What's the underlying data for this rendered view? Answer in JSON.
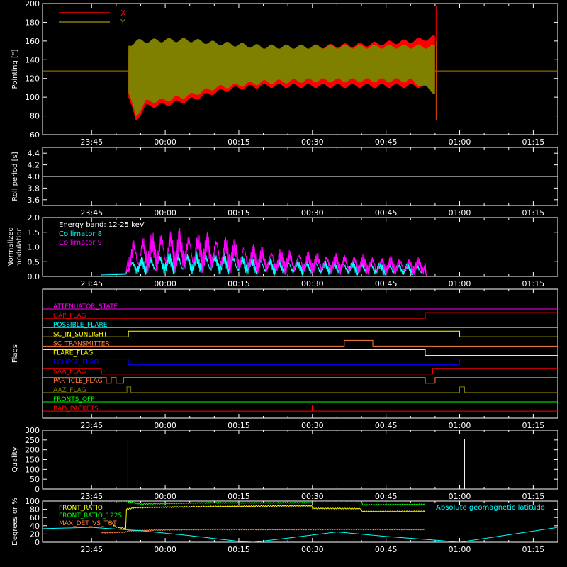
{
  "chart_data": [
    {
      "type": "line",
      "ylabel": "Pointing [\"]",
      "ylim": [
        60,
        200
      ],
      "yticks": [
        60,
        80,
        100,
        120,
        140,
        160,
        180,
        200
      ],
      "xtick_labels": [
        "23:45",
        "00:00",
        "00:15",
        "00:30",
        "00:45",
        "01:00",
        "01:15"
      ],
      "legend": [
        {
          "name": "X",
          "color": "#ff0000"
        },
        {
          "name": "Y",
          "color": "#808000"
        }
      ],
      "series": [
        {
          "name": "X",
          "color": "#ff0000",
          "baseline": 128,
          "envelope": {
            "t": [
              -7.5,
              -6,
              -4,
              0,
              5,
              10,
              15,
              20,
              30,
              40,
              50,
              55
            ],
            "upper": [
              150,
              138,
              140,
              143,
              145,
              149,
              152,
              153,
              154,
              156,
              160,
              164
            ],
            "lower": [
              100,
              75,
              90,
              92,
              97,
              105,
              110,
              112,
              112,
              112,
              112,
              112
            ]
          }
        },
        {
          "name": "Y",
          "color": "#808000",
          "baseline": 128,
          "envelope": {
            "t": [
              -7.5,
              -6,
              -4,
              0,
              5,
              10,
              15,
              20,
              30,
              40,
              50,
              55
            ],
            "upper": [
              155,
              160,
              160,
              161,
              161,
              158,
              156,
              154,
              154,
              154,
              154,
              154
            ],
            "lower": [
              105,
              80,
              95,
              97,
              102,
              110,
              113,
              116,
              118,
              118,
              118,
              105
            ]
          }
        }
      ]
    },
    {
      "type": "line",
      "ylabel": "Roll period [s]",
      "ylim": [
        3.5,
        4.5
      ],
      "yticks": [
        3.6,
        3.8,
        4.0,
        4.2,
        4.4
      ],
      "xtick_labels": [
        "23:45",
        "00:00",
        "00:15",
        "00:30",
        "00:45",
        "01:00",
        "01:15"
      ],
      "series": [
        {
          "name": "",
          "color": "#ffffff",
          "t": [
            -25,
            80
          ],
          "values": [
            4.0,
            4.0
          ]
        }
      ]
    },
    {
      "type": "line",
      "ylabel": [
        "Normalized",
        "modulation"
      ],
      "ylim": [
        0,
        2
      ],
      "yticks": [
        0.0,
        0.5,
        1.0,
        1.5,
        2.0
      ],
      "xtick_labels": [
        "23:45",
        "00:00",
        "00:15",
        "00:30",
        "00:45",
        "01:00",
        "01:15"
      ],
      "annotation": "Energy band: 12-25 keV",
      "legend": [
        {
          "name": "Collimator 8",
          "color": "#00ffff"
        },
        {
          "name": "Collimator 9",
          "color": "#ff00ff"
        }
      ],
      "series": [
        {
          "name": "Collimator 8",
          "color": "#00ffff",
          "t": [
            -13,
            -8,
            -7.5,
            0,
            10,
            20,
            30,
            40,
            50,
            53,
            53.2,
            80
          ],
          "values": [
            0.05,
            0.07,
            0.3,
            0.45,
            0.45,
            0.35,
            0.3,
            0.28,
            0.25,
            0.25,
            0,
            0
          ]
        },
        {
          "name": "Collimator 9",
          "color": "#ff00ff",
          "t": [
            -13,
            -8,
            -7.5,
            0,
            10,
            20,
            30,
            40,
            50,
            53,
            53.2,
            80
          ],
          "values": [
            0.08,
            0.1,
            0.7,
            0.9,
            0.8,
            0.55,
            0.45,
            0.4,
            0.35,
            0.35,
            0,
            0
          ]
        }
      ]
    },
    {
      "type": "line",
      "ylabel": "Flags",
      "xtick_labels": [
        "23:45",
        "00:00",
        "00:15",
        "00:30",
        "00:45",
        "01:00",
        "01:15"
      ],
      "flags": [
        {
          "name": "ATTENUATOR_STATE",
          "color": "#ff00ff",
          "segments": [
            [
              -25,
              80,
              0
            ]
          ]
        },
        {
          "name": "GAP_FLAG",
          "color": "#ff0000",
          "segments": [
            [
              -25,
              53,
              0
            ],
            [
              53,
              80,
              1
            ]
          ]
        },
        {
          "name": "POSSIBLE_FLARE",
          "color": "#00ffff",
          "segments": [
            [
              -25,
              80,
              0
            ]
          ]
        },
        {
          "name": "SC_IN_SUNLIGHT",
          "color": "#ffff00",
          "segments": [
            [
              -25,
              -7.5,
              0
            ],
            [
              -7.5,
              60,
              1
            ],
            [
              60,
              80,
              0
            ]
          ]
        },
        {
          "name": "SC_TRANSMITTER",
          "color": "#ff8040",
          "segments": [
            [
              -25,
              36.5,
              0
            ],
            [
              36.5,
              42.3,
              1
            ],
            [
              42.3,
              80,
              0
            ]
          ]
        },
        {
          "name": "FLARE_FLAG",
          "color": "#ffff00",
          "segments": [
            [
              -25,
              53,
              1
            ],
            [
              53,
              80,
              0
            ]
          ]
        },
        {
          "name": "ECLIPSE_FLAG",
          "color": "#0000ff",
          "segments": [
            [
              -25,
              -7.5,
              1
            ],
            [
              -7.5,
              60,
              0
            ],
            [
              60,
              80,
              1
            ]
          ]
        },
        {
          "name": "SAA_FLAG",
          "color": "#ff0000",
          "segments": [
            [
              -25,
              -13,
              1
            ],
            [
              -13,
              54.5,
              0
            ],
            [
              54.5,
              80,
              1
            ]
          ]
        },
        {
          "name": "PARTICLE_FLAG",
          "color": "#ff8040",
          "segments": [
            [
              -25,
              -12,
              1
            ],
            [
              -12,
              -11,
              0
            ],
            [
              -11,
              -10,
              1
            ],
            [
              -10,
              -8.5,
              0
            ],
            [
              -8.5,
              53,
              1
            ],
            [
              53,
              55,
              0
            ],
            [
              55,
              80,
              1
            ]
          ]
        },
        {
          "name": "AAZ_FLAG",
          "color": "#808000",
          "segments": [
            [
              -25,
              -7.8,
              0
            ],
            [
              -7.8,
              -7,
              1
            ],
            [
              -7,
              60,
              0
            ],
            [
              60,
              61,
              1
            ],
            [
              61,
              80,
              0
            ]
          ]
        },
        {
          "name": "FRONTS_OFF",
          "color": "#00ff00",
          "segments": [
            [
              -25,
              80,
              0
            ]
          ]
        },
        {
          "name": "BAD_PACKETS",
          "color": "#ff0000",
          "segments": [
            [
              -25,
              80,
              0
            ]
          ],
          "spikes": [
            30
          ]
        }
      ]
    },
    {
      "type": "line",
      "ylabel": "Quality",
      "ylim": [
        0,
        300
      ],
      "yticks": [
        0,
        50,
        100,
        150,
        200,
        250,
        300
      ],
      "xtick_labels": [
        "23:45",
        "00:00",
        "00:15",
        "00:30",
        "00:45",
        "01:00",
        "01:15"
      ],
      "series": [
        {
          "name": "",
          "color": "#ffffff",
          "t": [
            -25,
            -7.6,
            -7.6,
            61,
            61,
            80
          ],
          "values": [
            255,
            255,
            0,
            0,
            255,
            255
          ]
        }
      ]
    },
    {
      "type": "line",
      "ylabel": "Degrees or %",
      "ylim": [
        0,
        100
      ],
      "yticks": [
        0,
        20,
        40,
        60,
        80,
        100
      ],
      "xtick_labels": [
        "23:45",
        "00:00",
        "00:15",
        "00:30",
        "00:45",
        "01:00",
        "01:15"
      ],
      "legend": [
        {
          "name": "FRONT_RATIO",
          "color": "#ffff00"
        },
        {
          "name": "FRONT_RATIO_1225",
          "color": "#00ff00"
        },
        {
          "name": "MAX_DET_VS_TOT",
          "color": "#ff8040"
        }
      ],
      "annotation": "Absolute geomagnetic latitude",
      "annotation_color": "#00ffff",
      "series": [
        {
          "name": "FRONT_RATIO",
          "color": "#ffff00",
          "t": [
            -11.5,
            -11.5,
            -10,
            -8,
            -8,
            -6,
            0,
            10,
            20,
            29.9,
            30,
            39.9,
            40,
            50,
            53
          ],
          "values": [
            0,
            50,
            37,
            33,
            80,
            84,
            85,
            87,
            88,
            88,
            82,
            82,
            75,
            75,
            75
          ]
        },
        {
          "name": "FRONT_RATIO_1225",
          "color": "#00ff00",
          "t": [
            -11.5,
            -11.5,
            -10,
            -8,
            -5,
            0,
            10,
            20,
            30,
            30.2,
            40,
            40.2,
            50,
            53,
            53
          ],
          "values": [
            0,
            100,
            100,
            100,
            93,
            94,
            96,
            96,
            96,
            100,
            100,
            91,
            92,
            92,
            0
          ]
        },
        {
          "name": "MAX_DET_VS_TOT",
          "color": "#ff8040",
          "t": [
            -13,
            -13,
            -8,
            -7.5,
            0,
            10,
            20,
            30,
            40,
            50,
            53,
            53
          ],
          "values": [
            0,
            23,
            25,
            28,
            30,
            31,
            31,
            31,
            31,
            31,
            31,
            0
          ]
        },
        {
          "name": "Absolute geomagnetic latitude",
          "color": "#00ffff",
          "t": [
            -25,
            -15,
            -5,
            5,
            15,
            18,
            25,
            35,
            45,
            55,
            60,
            70,
            80
          ],
          "values": [
            33,
            36,
            28,
            16,
            2,
            0,
            10,
            25,
            14,
            5,
            0,
            18,
            36
          ]
        }
      ]
    }
  ]
}
